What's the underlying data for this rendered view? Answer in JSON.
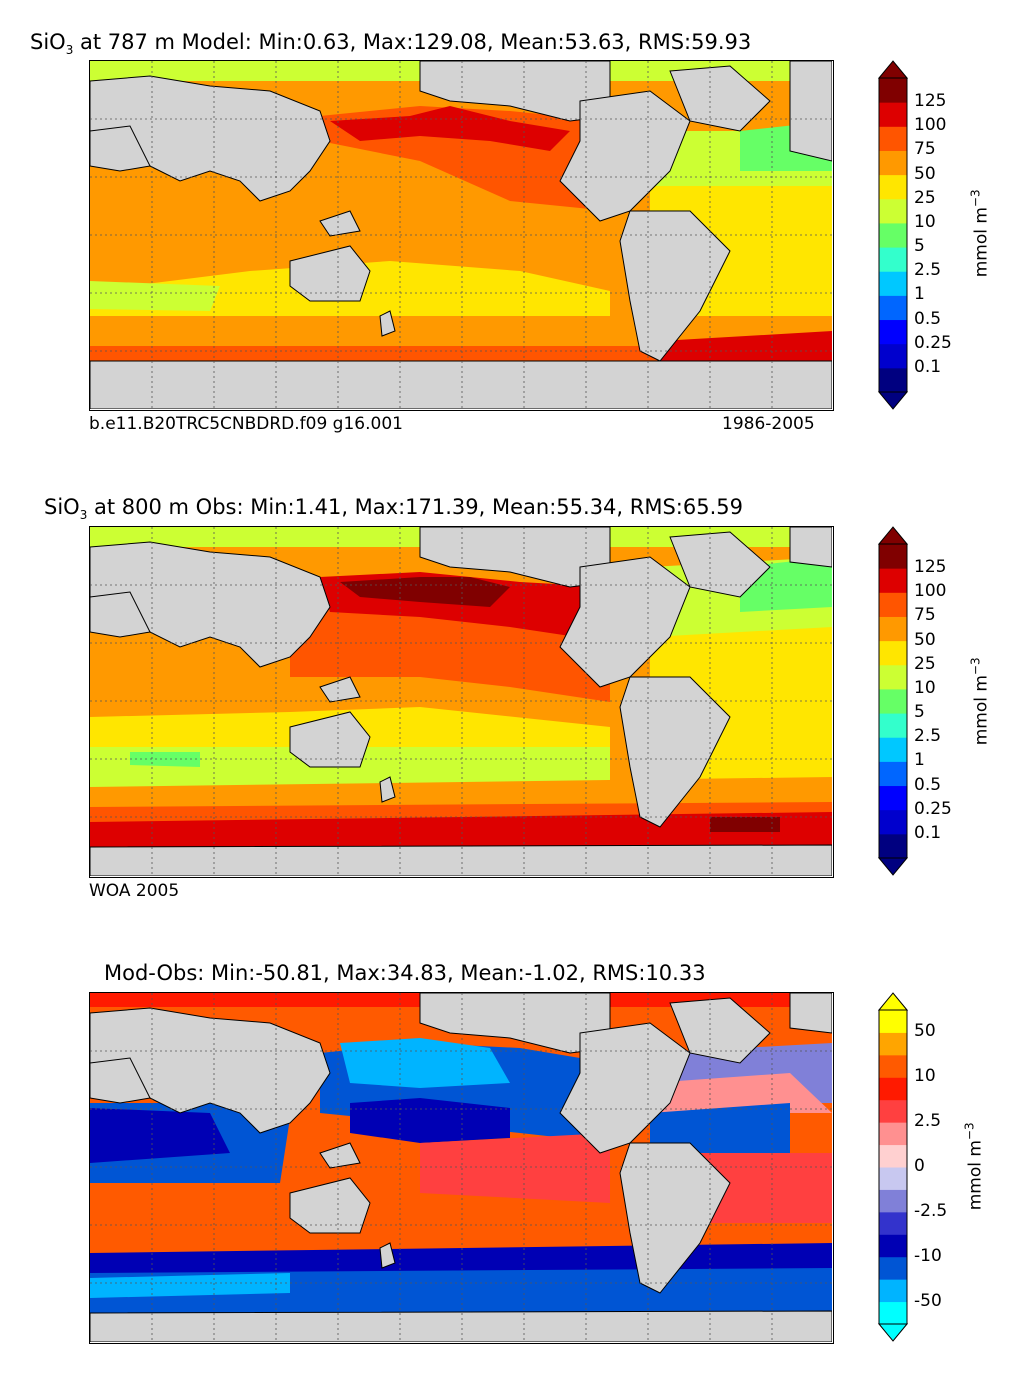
{
  "panels": [
    {
      "title_pre": "SiO",
      "title_sub": "3",
      "title_post": " at 787 m Model: Min:0.63, Max:129.08, Mean:53.63, RMS:59.93",
      "caption_left": "b.e11.B20TRC5CNBDRD.f09 g16.001",
      "caption_right": "1986-2005",
      "cbar_unit_base": "mmol m",
      "cbar_unit_exp": "−3",
      "cbar_ticks": [
        "125",
        "100",
        "75",
        "50",
        "25",
        "10",
        "5",
        "2.5",
        "1",
        "0.5",
        "0.25",
        "0.1"
      ],
      "cbar_colors": [
        "#000080",
        "#0000cd",
        "#0000ff",
        "#0066ff",
        "#00c8ff",
        "#33ffcc",
        "#66ff66",
        "#ccff33",
        "#ffe600",
        "#ff9900",
        "#ff5500",
        "#dd0000",
        "#800000"
      ]
    },
    {
      "title_pre": "SiO",
      "title_sub": "3",
      "title_post": " at 800 m Obs: Min:1.41, Max:171.39, Mean:55.34, RMS:65.59",
      "caption_left": "WOA 2005",
      "caption_right": "",
      "cbar_unit_base": "mmol m",
      "cbar_unit_exp": "−3",
      "cbar_ticks": [
        "125",
        "100",
        "75",
        "50",
        "25",
        "10",
        "5",
        "2.5",
        "1",
        "0.5",
        "0.25",
        "0.1"
      ],
      "cbar_colors": [
        "#000080",
        "#0000cd",
        "#0000ff",
        "#0066ff",
        "#00c8ff",
        "#33ffcc",
        "#66ff66",
        "#ccff33",
        "#ffe600",
        "#ff9900",
        "#ff5500",
        "#dd0000",
        "#800000"
      ]
    },
    {
      "title_pre": "",
      "title_sub": "",
      "title_post": "Mod-Obs: Min:-50.81, Max:34.83, Mean:-1.02, RMS:10.33",
      "caption_left": "",
      "caption_right": "",
      "cbar_unit_base": "mmol m",
      "cbar_unit_exp": "−3",
      "cbar_ticks": [
        "50",
        "10",
        "2.5",
        "0",
        "-2.5",
        "-10",
        "-50"
      ],
      "cbar_colors": [
        "#00ffff",
        "#00b4ff",
        "#0055d4",
        "#0000b4",
        "#3333cc",
        "#8080d8",
        "#c8c8f0",
        "#ffd0d0",
        "#ff9090",
        "#ff4040",
        "#ff1a00",
        "#ff5a00",
        "#ffa500",
        "#ffff00"
      ]
    }
  ],
  "map_colors": {
    "land": "#d3d3d3",
    "coast": "#000000",
    "grid": "#555555"
  }
}
